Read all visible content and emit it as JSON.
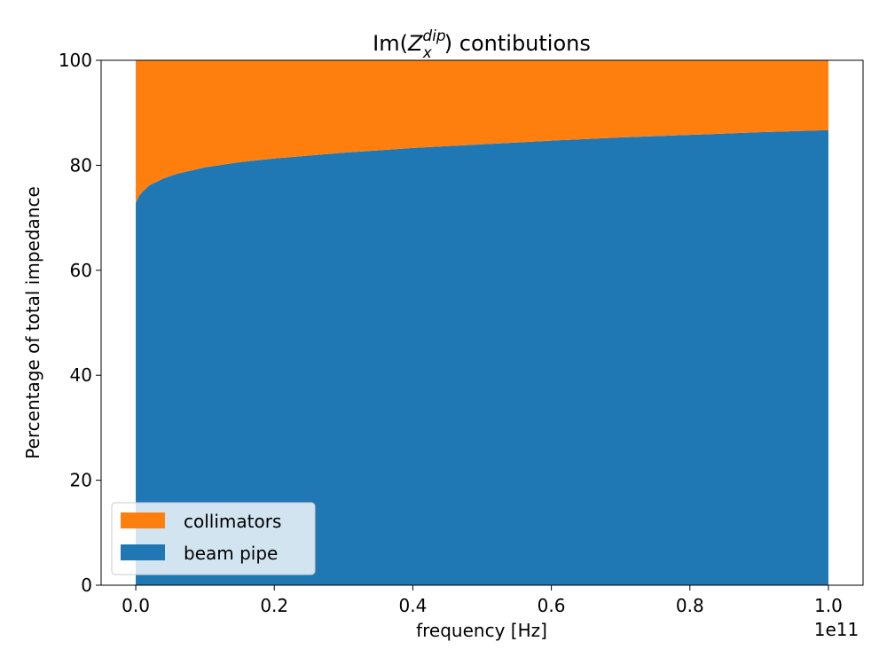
{
  "chart_data": {
    "type": "area",
    "stacked": true,
    "title": "Im(Z_x^dip) contibutions",
    "title_parts": {
      "prefix": "Im(",
      "var": "Z",
      "sub": "x",
      "sup": "dip",
      "suffix": ") contibutions"
    },
    "xlabel": "frequency [Hz]",
    "ylabel": "Percentage of total impedance",
    "x_offset_label": "1e11",
    "xlim": [
      -0.05,
      1.05
    ],
    "ylim": [
      0,
      100
    ],
    "x_ticks": [
      0.0,
      0.2,
      0.4,
      0.6,
      0.8,
      1.0
    ],
    "x_tick_labels": [
      "0.0",
      "0.2",
      "0.4",
      "0.6",
      "0.8",
      "1.0"
    ],
    "y_ticks": [
      0,
      20,
      40,
      60,
      80,
      100
    ],
    "y_tick_labels": [
      "0",
      "20",
      "40",
      "60",
      "80",
      "100"
    ],
    "x_scale_note": "x values in units of 1e11 Hz",
    "x": [
      0.0,
      0.005,
      0.01,
      0.02,
      0.04,
      0.06,
      0.1,
      0.15,
      0.2,
      0.3,
      0.4,
      0.5,
      0.6,
      0.7,
      0.8,
      0.9,
      1.0
    ],
    "series": [
      {
        "name": "beam pipe",
        "color": "#1f77b4",
        "values": [
          72.8,
          74.2,
          75.0,
          76.2,
          77.5,
          78.4,
          79.6,
          80.6,
          81.3,
          82.4,
          83.3,
          84.0,
          84.7,
          85.3,
          85.8,
          86.3,
          86.7
        ]
      },
      {
        "name": "collimators",
        "color": "#ff7f0e",
        "values": [
          27.2,
          25.8,
          25.0,
          23.8,
          22.5,
          21.6,
          20.4,
          19.4,
          18.7,
          17.6,
          16.7,
          16.0,
          15.3,
          14.7,
          14.2,
          13.7,
          13.3
        ]
      }
    ],
    "legend": {
      "position": "lower-left",
      "entries": [
        {
          "label": "collimators",
          "color": "#ff7f0e"
        },
        {
          "label": "beam pipe",
          "color": "#1f77b4"
        }
      ]
    },
    "grid": false
  }
}
